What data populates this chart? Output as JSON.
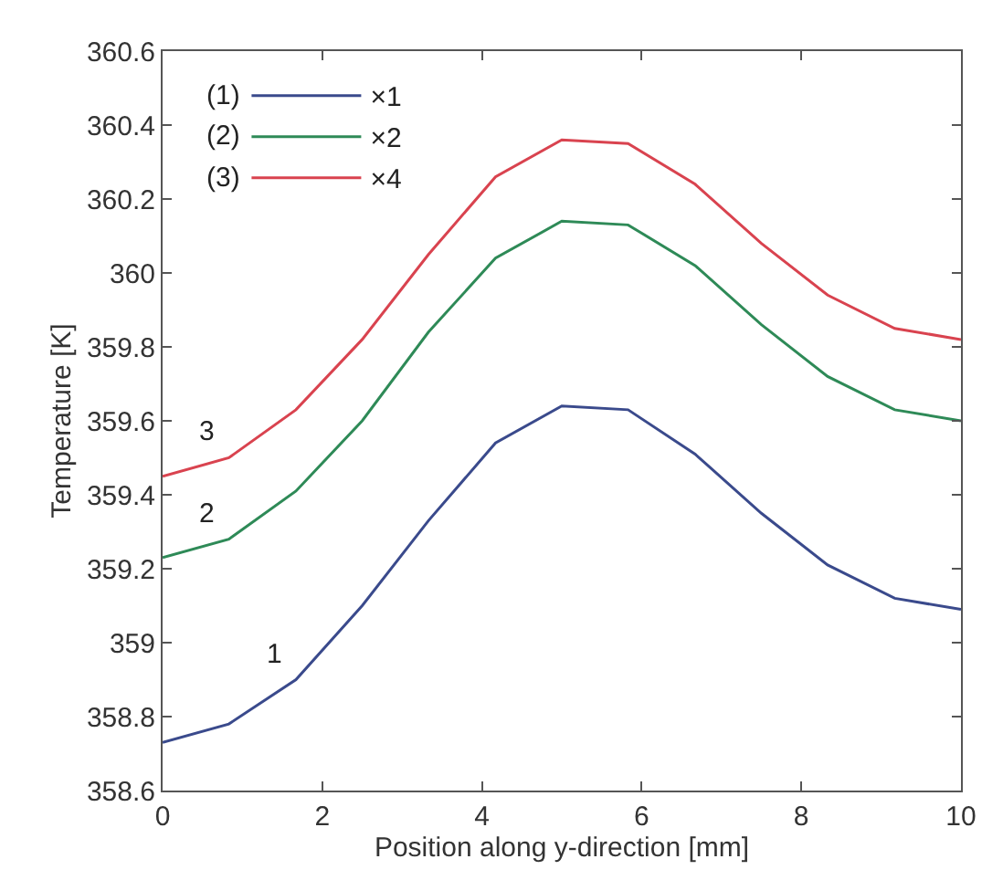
{
  "chart_data": {
    "type": "line",
    "xlabel": "Position along y-direction [mm]",
    "ylabel": "Temperature [K]",
    "x": [
      0,
      0.83,
      1.67,
      2.5,
      3.33,
      4.17,
      5,
      5.83,
      6.67,
      7.5,
      8.33,
      9.17,
      10
    ],
    "series": [
      {
        "name": "×1",
        "color": "#3a4a8c",
        "values": [
          358.73,
          358.78,
          358.9,
          359.1,
          359.33,
          359.54,
          359.64,
          359.63,
          359.51,
          359.35,
          359.21,
          359.12,
          359.09
        ]
      },
      {
        "name": "×2",
        "color": "#2e8a57",
        "values": [
          359.23,
          359.28,
          359.41,
          359.6,
          359.84,
          360.04,
          360.14,
          360.13,
          360.02,
          359.86,
          359.72,
          359.63,
          359.6
        ]
      },
      {
        "name": "×4",
        "color": "#d9434f",
        "values": [
          359.45,
          359.5,
          359.63,
          359.82,
          360.05,
          360.26,
          360.36,
          360.35,
          360.24,
          360.08,
          359.94,
          359.85,
          359.82
        ]
      }
    ],
    "annotations": [
      "(1)",
      "(2)",
      "(3)",
      "1",
      "2",
      "3"
    ],
    "xlim": [
      0,
      10
    ],
    "xticks": [
      0,
      2,
      4,
      6,
      8,
      10
    ],
    "ylim": [
      358.6,
      360.6
    ],
    "yticks": [
      358.6,
      358.8,
      359,
      359.2,
      359.4,
      359.6,
      359.8,
      360,
      360.2,
      360.4,
      360.6
    ],
    "grid": false,
    "legend": "top left",
    "marker": "none",
    "line_style": "solid"
  }
}
